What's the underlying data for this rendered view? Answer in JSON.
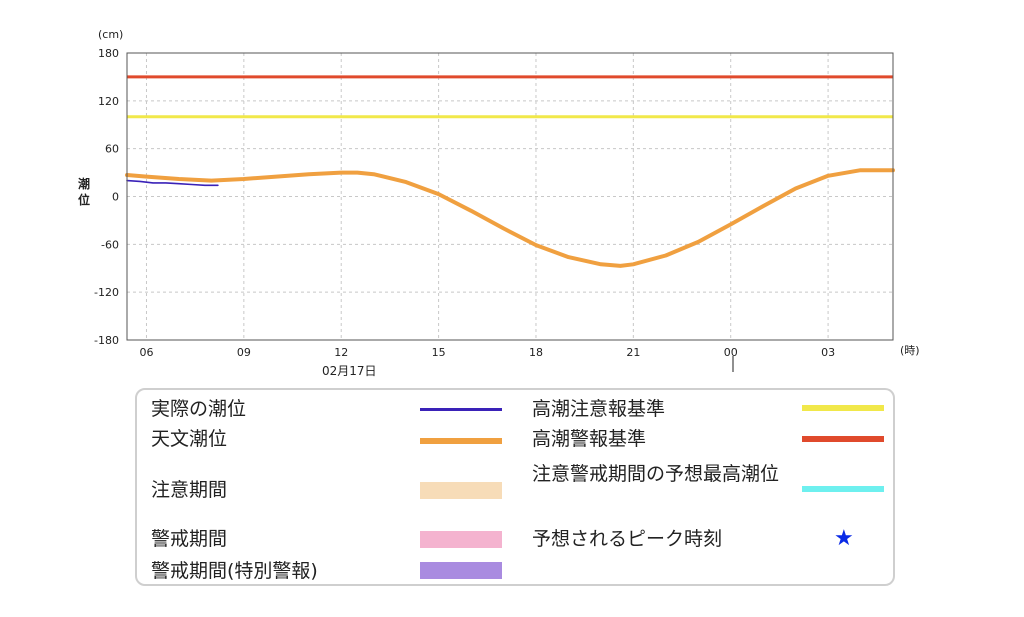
{
  "chart_data": {
    "type": "line",
    "yunit": "(cm)",
    "ylabel": "潮位",
    "xunit": "(時)",
    "ylim": [
      -180,
      180
    ],
    "yticks": [
      "180",
      "120",
      "60",
      "0",
      "-60",
      "-120",
      "-180"
    ],
    "xlim_hours": [
      5.4,
      29.0
    ],
    "xticks": [
      {
        "hour": 6,
        "label": "06"
      },
      {
        "hour": 9,
        "label": "09"
      },
      {
        "hour": 12,
        "label": "12"
      },
      {
        "hour": 15,
        "label": "15"
      },
      {
        "hour": 18,
        "label": "18"
      },
      {
        "hour": 21,
        "label": "21"
      },
      {
        "hour": 24,
        "label": "00"
      },
      {
        "hour": 27,
        "label": "03"
      }
    ],
    "date_label": "02月17日",
    "thresholds": [
      {
        "name": "高潮警報基準",
        "value": 150,
        "color": "#e04a2c"
      },
      {
        "name": "高潮注意報基準",
        "value": 100,
        "color": "#f1e84a"
      }
    ],
    "series": [
      {
        "name": "天文潮位",
        "color": "#f0a040",
        "x": [
          5.4,
          6,
          7,
          8,
          9,
          10,
          11,
          12,
          12.5,
          13,
          14,
          15,
          16,
          17,
          18,
          19,
          20,
          20.6,
          21,
          22,
          23,
          24,
          25,
          26,
          27,
          28,
          29
        ],
        "y": [
          27,
          25,
          22,
          20,
          22,
          25,
          28,
          30,
          30,
          28,
          18,
          3,
          -18,
          -40,
          -61,
          -76,
          -85,
          -87,
          -85,
          -74,
          -57,
          -35,
          -12,
          10,
          26,
          33,
          33
        ]
      },
      {
        "name": "実際の潮位",
        "color": "#3a22b8",
        "x": [
          5.4,
          5.8,
          6.2,
          6.6,
          7.0,
          7.4,
          7.8,
          8.2
        ],
        "y": [
          20,
          19,
          17,
          17,
          16,
          15,
          14,
          14
        ]
      }
    ]
  },
  "legend": {
    "items": [
      {
        "label": "実際の潮位",
        "color": "#3a22b8"
      },
      {
        "label": "天文潮位",
        "color": "#f0a040"
      },
      {
        "label": "注意期間",
        "color": "#f7dcb8"
      },
      {
        "label": "警戒期間",
        "color": "#f4b3cf"
      },
      {
        "label": "警戒期間(特別警報)",
        "color": "#a98be0"
      },
      {
        "label": "高潮注意報基準",
        "color": "#f1e84a"
      },
      {
        "label": "高潮警報基準",
        "color": "#e04a2c"
      },
      {
        "label": "注意警戒期間の予想最高潮位",
        "color": "#6ef0ef"
      },
      {
        "label": "予想されるピーク時刻",
        "icon": "star-icon",
        "color": "#0a2ae6"
      }
    ]
  }
}
